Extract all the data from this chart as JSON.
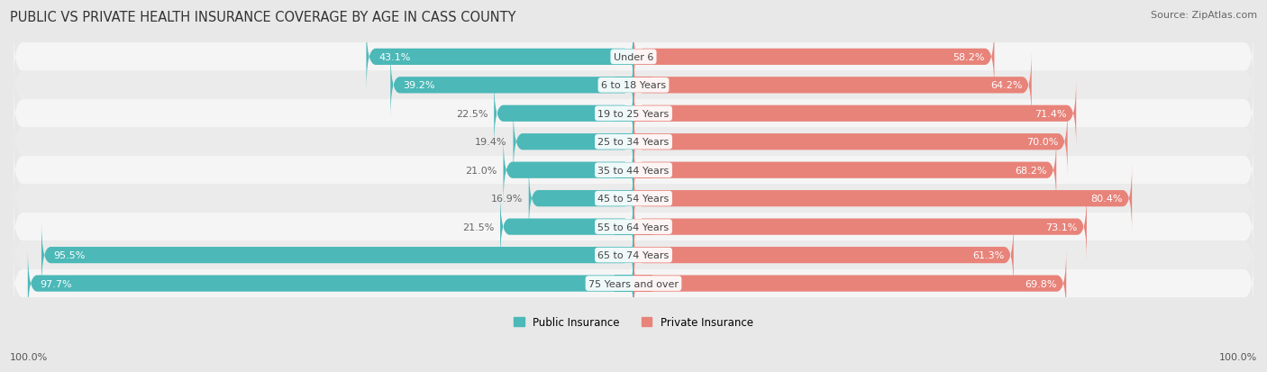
{
  "title": "PUBLIC VS PRIVATE HEALTH INSURANCE COVERAGE BY AGE IN CASS COUNTY",
  "source": "Source: ZipAtlas.com",
  "categories": [
    "Under 6",
    "6 to 18 Years",
    "19 to 25 Years",
    "25 to 34 Years",
    "35 to 44 Years",
    "45 to 54 Years",
    "55 to 64 Years",
    "65 to 74 Years",
    "75 Years and over"
  ],
  "public_values": [
    43.1,
    39.2,
    22.5,
    19.4,
    21.0,
    16.9,
    21.5,
    95.5,
    97.7
  ],
  "private_values": [
    58.2,
    64.2,
    71.4,
    70.0,
    68.2,
    80.4,
    73.1,
    61.3,
    69.8
  ],
  "public_color": "#4cb8b8",
  "private_color": "#e8837a",
  "background_color": "#e8e8e8",
  "row_bg_odd": "#f5f5f5",
  "row_bg_even": "#ebebeb",
  "label_color_white": "#ffffff",
  "label_color_dark": "#666666",
  "axis_label": "100.0%",
  "title_fontsize": 10.5,
  "source_fontsize": 8,
  "label_fontsize": 8,
  "category_fontsize": 8,
  "legend_fontsize": 8.5,
  "max_value": 100.0
}
